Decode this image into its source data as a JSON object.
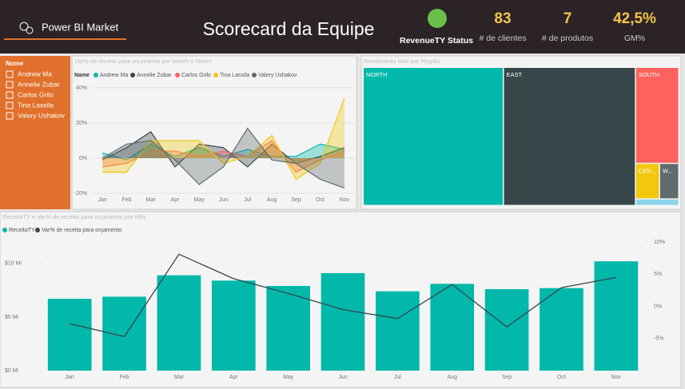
{
  "header": {
    "brand": "Power BI Market",
    "title": "Scorecard da Equipe",
    "status": {
      "label": "RevenueTY Status",
      "color": "#6abf4b"
    },
    "kpis": [
      {
        "value": 83,
        "label": "# de clientes"
      },
      {
        "value": 7,
        "label": "# de produtos"
      },
      {
        "value": 42.5,
        "value_label": "42,5%",
        "label": "GM%"
      }
    ]
  },
  "slicer": {
    "title": "Nome",
    "items": [
      "Andrew Ma",
      "Annelie Zubar",
      "Carlos Grilo",
      "Tina Lassila",
      "Valery Ushakov"
    ]
  },
  "chart_data": [
    {
      "type": "area",
      "title": "Var% de receita para orçamento por Month e Name",
      "legend_title": "Name",
      "categories": [
        "Jan",
        "Feb",
        "Mar",
        "Apr",
        "May",
        "Jun",
        "Jul",
        "Aug",
        "Sep",
        "Oct",
        "Nov"
      ],
      "series": [
        {
          "name": "Andrew Ma",
          "color": "#01b8aa",
          "values": [
            3,
            -1,
            8,
            1,
            6,
            1,
            5,
            1,
            1,
            8,
            5
          ]
        },
        {
          "name": "Annelie Zubar",
          "color": "#374649",
          "values": [
            -1,
            6,
            15,
            -5,
            8,
            6,
            -5,
            8,
            -3,
            1,
            6
          ]
        },
        {
          "name": "Carlos Grilo",
          "color": "#fd625e",
          "values": [
            -5,
            -3,
            4,
            4,
            1,
            4,
            1,
            10,
            -8,
            -1,
            4
          ]
        },
        {
          "name": "Tina Lassila",
          "color": "#f2c80f",
          "values": [
            -8,
            -8,
            10,
            10,
            10,
            -3,
            1,
            13,
            -12,
            -3,
            34
          ]
        },
        {
          "name": "Valery Ushakov",
          "color": "#5f6b6d",
          "values": [
            0,
            8,
            10,
            -1,
            -15,
            -5,
            17,
            -1,
            -3,
            -12,
            -17
          ]
        }
      ],
      "ylim": [
        -20,
        40
      ],
      "yticks": [
        {
          "value": -20,
          "label": "-20%"
        },
        {
          "value": 0,
          "label": "0%"
        },
        {
          "value": 20,
          "label": "20%"
        },
        {
          "value": 40,
          "label": "40%"
        }
      ]
    },
    {
      "type": "treemap",
      "title": "Rendimento total por Região",
      "categories": [
        "NORTH",
        "EAST",
        "SOUTH",
        "CEN...",
        "W...",
        null
      ],
      "values": [
        34,
        32,
        7.3,
        1.5,
        1.2,
        0.5
      ],
      "colors": [
        "#01b8aa",
        "#374649",
        "#fd625e",
        "#f2c80f",
        "#5f6b6d",
        "#8ad4eb"
      ]
    },
    {
      "type": "combo",
      "title": "ReceitaTY e Var% de receita para orçamento por Mês",
      "categories": [
        "Jan",
        "Feb",
        "Mar",
        "Apr",
        "May",
        "Jun",
        "Jul",
        "Aug",
        "Sep",
        "Oct",
        "Nov"
      ],
      "series": [
        {
          "name": "ReceitaTY",
          "color": "#01b8aa",
          "type": "bar",
          "values": [
            6.7,
            6.9,
            8.9,
            8.4,
            7.9,
            9.1,
            7.4,
            8.1,
            7.6,
            7.7,
            10.2
          ]
        },
        {
          "name": "Var% de receita para orçamento",
          "color": "#374649",
          "type": "line",
          "axis": "y2",
          "values": [
            -2.7,
            -4.7,
            8.1,
            4.3,
            2.0,
            -0.5,
            -1.9,
            3.4,
            -3.2,
            2.9,
            4.5
          ]
        }
      ],
      "ylim": [
        0,
        12
      ],
      "yticks": [
        {
          "value": 0,
          "label": "$0 Mi"
        },
        {
          "value": 5,
          "label": "$5 Mi"
        },
        {
          "value": 10,
          "label": "$10 Mi"
        }
      ],
      "y2lim": [
        -10,
        10
      ],
      "y2ticks": [
        {
          "value": -5,
          "label": "-5%"
        },
        {
          "value": 0,
          "label": "0%"
        },
        {
          "value": 5,
          "label": "5%"
        },
        {
          "value": 10,
          "label": "10%"
        }
      ]
    }
  ]
}
